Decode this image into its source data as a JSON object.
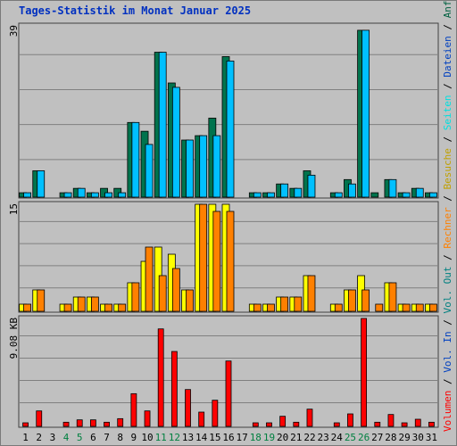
{
  "title": "Tages-Statistik im Monat Januar 2025",
  "colors": {
    "hits": "#006040",
    "files": "#00c0ff",
    "pages": "#00e0e0",
    "visits": "#ffff00",
    "sites": "#ff8000",
    "kbytes_in": "#0040c0",
    "kbytes_out": "#008080",
    "kbytes": "#ff0000",
    "weekend": "#008040",
    "weekday": "#000000"
  },
  "legend": {
    "upper": [
      "Anfragen",
      "Dateien",
      "Seiten"
    ],
    "middle": [
      "Besuche",
      "Rechner"
    ],
    "lower": [
      "Vol. Out",
      "Vol. In",
      "Volumen"
    ],
    "separator": " / "
  },
  "chart_data": [
    {
      "type": "bar",
      "name": "top",
      "y_max_label": "39",
      "ylim": [
        0,
        39
      ],
      "categories": [
        "1",
        "2",
        "3",
        "4",
        "5",
        "6",
        "7",
        "8",
        "9",
        "10",
        "11",
        "12",
        "13",
        "14",
        "15",
        "16",
        "17",
        "18",
        "19",
        "20",
        "21",
        "22",
        "23",
        "24",
        "25",
        "26",
        "27",
        "28",
        "29",
        "30",
        "31"
      ],
      "weekend_days": [
        4,
        5,
        11,
        12,
        18,
        19,
        25,
        26
      ],
      "series": [
        {
          "name": "Anfragen",
          "values": [
            1,
            6,
            0,
            1,
            2,
            1,
            2,
            2,
            17,
            15,
            33,
            26,
            13,
            14,
            18,
            32,
            0,
            1,
            1,
            3,
            2,
            6,
            0,
            1,
            4,
            38,
            1,
            4,
            1,
            2,
            1
          ]
        },
        {
          "name": "Dateien",
          "values": [
            1,
            6,
            0,
            1,
            2,
            1,
            1,
            1,
            17,
            12,
            33,
            25,
            13,
            14,
            14,
            31,
            0,
            1,
            1,
            3,
            2,
            5,
            0,
            1,
            3,
            38,
            0,
            4,
            1,
            2,
            1
          ]
        }
      ]
    },
    {
      "type": "bar",
      "name": "middle",
      "y_max_label": "15",
      "ylim": [
        0,
        15
      ],
      "categories": [
        "1",
        "2",
        "3",
        "4",
        "5",
        "6",
        "7",
        "8",
        "9",
        "10",
        "11",
        "12",
        "13",
        "14",
        "15",
        "16",
        "17",
        "18",
        "19",
        "20",
        "21",
        "22",
        "23",
        "24",
        "25",
        "26",
        "27",
        "28",
        "29",
        "30",
        "31"
      ],
      "series": [
        {
          "name": "Besuche",
          "values": [
            1,
            3,
            0,
            1,
            2,
            2,
            1,
            1,
            4,
            7,
            9,
            8,
            3,
            15,
            15,
            15,
            0,
            1,
            1,
            2,
            2,
            5,
            0,
            1,
            3,
            5,
            0,
            4,
            1,
            1,
            1
          ]
        },
        {
          "name": "Rechner",
          "values": [
            1,
            3,
            0,
            1,
            2,
            2,
            1,
            1,
            4,
            9,
            5,
            6,
            3,
            15,
            14,
            14,
            0,
            1,
            1,
            2,
            2,
            5,
            0,
            1,
            3,
            3,
            1,
            4,
            1,
            1,
            1
          ]
        }
      ]
    },
    {
      "type": "bar",
      "name": "bottom",
      "y_max_label": "9.08 KB",
      "ylim": [
        0,
        9.08
      ],
      "categories": [
        "1",
        "2",
        "3",
        "4",
        "5",
        "6",
        "7",
        "8",
        "9",
        "10",
        "11",
        "12",
        "13",
        "14",
        "15",
        "16",
        "17",
        "18",
        "19",
        "20",
        "21",
        "22",
        "23",
        "24",
        "25",
        "26",
        "27",
        "28",
        "29",
        "30",
        "31"
      ],
      "series": [
        {
          "name": "Volumen",
          "values": [
            0.3,
            1.3,
            0,
            0.35,
            0.55,
            0.55,
            0.35,
            0.65,
            2.75,
            1.3,
            8.2,
            6.3,
            3.1,
            1.2,
            2.2,
            5.5,
            0,
            0.3,
            0.3,
            0.85,
            0.35,
            1.45,
            0,
            0.3,
            1.05,
            9.08,
            0.35,
            1.0,
            0.3,
            0.6,
            0.35
          ]
        }
      ]
    }
  ]
}
